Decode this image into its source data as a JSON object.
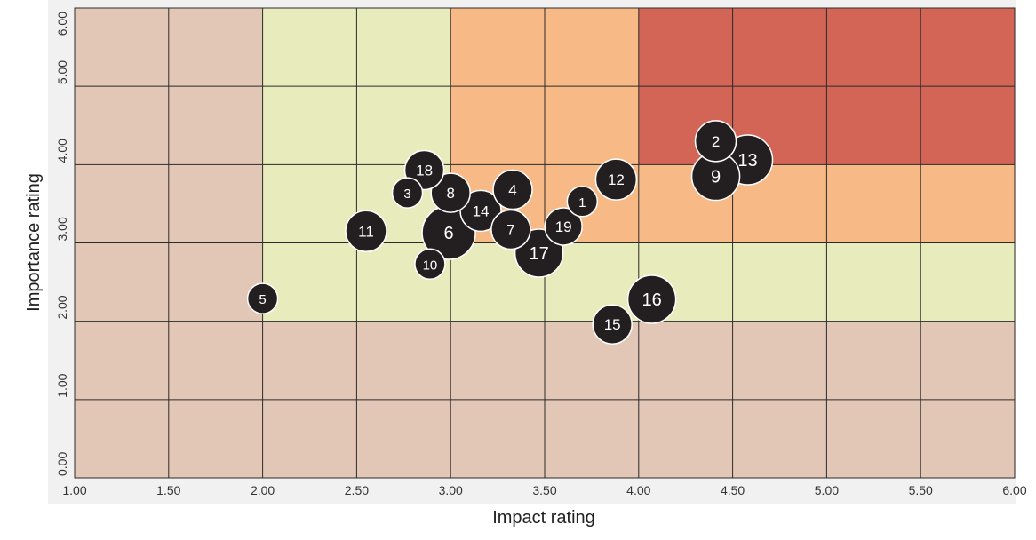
{
  "chart_data": {
    "type": "scatter",
    "xlabel": "Impact rating",
    "ylabel": "Importance rating",
    "xlim": [
      1,
      6
    ],
    "ylim": [
      0,
      6
    ],
    "xticks": [
      {
        "value": 1,
        "label": "1.00"
      },
      {
        "value": 1.5,
        "label": "1.50"
      },
      {
        "value": 2,
        "label": "2.00"
      },
      {
        "value": 2.5,
        "label": "2.50"
      },
      {
        "value": 3,
        "label": "3.00"
      },
      {
        "value": 3.5,
        "label": "3.50"
      },
      {
        "value": 4,
        "label": "4.00"
      },
      {
        "value": 4.5,
        "label": "4.50"
      },
      {
        "value": 5,
        "label": "5.00"
      },
      {
        "value": 5.5,
        "label": "5.50"
      },
      {
        "value": 6,
        "label": "6.00"
      }
    ],
    "yticks": [
      {
        "value": 0,
        "label": "0.00"
      },
      {
        "value": 1,
        "label": "1.00"
      },
      {
        "value": 2,
        "label": "2.00"
      },
      {
        "value": 3,
        "label": "3.00"
      },
      {
        "value": 4,
        "label": "4.00"
      },
      {
        "value": 5,
        "label": "5.00"
      },
      {
        "value": 6,
        "label": "6.00"
      }
    ],
    "grid": true,
    "color": "#231f20",
    "labels": [
      "1",
      "2",
      "3",
      "4",
      "5",
      "6",
      "7",
      "8",
      "9",
      "10",
      "11",
      "12",
      "13",
      "14",
      "15",
      "16",
      "17",
      "18",
      "19"
    ],
    "x": [
      3.7,
      4.41,
      2.77,
      3.33,
      2.0,
      2.99,
      3.32,
      3.0,
      4.41,
      2.89,
      2.55,
      3.88,
      4.58,
      3.16,
      3.86,
      4.07,
      3.47,
      2.86,
      3.6
    ],
    "y": [
      3.53,
      4.3,
      3.64,
      3.68,
      2.29,
      3.13,
      3.17,
      3.64,
      3.85,
      2.73,
      3.15,
      3.81,
      4.06,
      3.41,
      1.96,
      2.28,
      2.87,
      3.93,
      3.21
    ],
    "sizes": [
      17,
      23,
      17,
      22,
      17,
      30,
      22,
      22,
      27,
      17,
      23,
      23,
      28,
      23,
      22,
      27,
      27,
      22,
      21
    ]
  }
}
